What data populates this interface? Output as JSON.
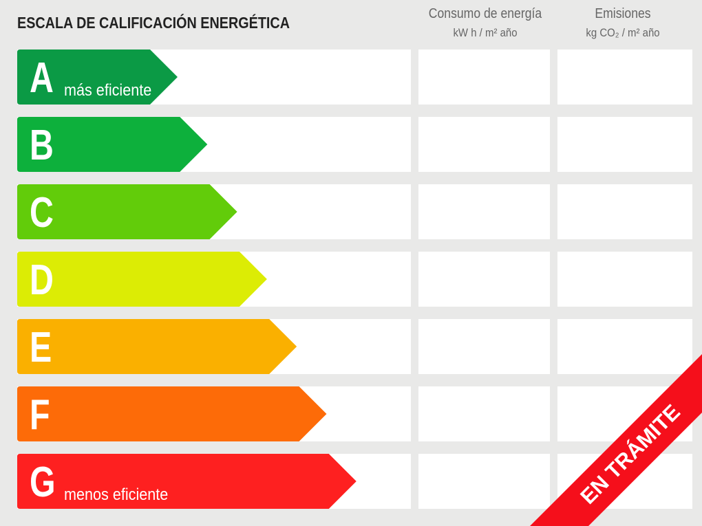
{
  "title": "ESCALA DE CALIFICACIÓN ENERGÉTICA",
  "columns": {
    "consumo": {
      "title": "Consumo de energía",
      "unit": "kW h / m² año"
    },
    "emisiones": {
      "title": "Emisiones",
      "unit": "kg CO₂ / m² año"
    }
  },
  "ratings": [
    {
      "letter": "A",
      "label": "más eficiente",
      "color": "#0b9a45"
    },
    {
      "letter": "B",
      "label": "",
      "color": "#0db03c"
    },
    {
      "letter": "C",
      "label": "",
      "color": "#62cc0a"
    },
    {
      "letter": "D",
      "label": "",
      "color": "#dcec05"
    },
    {
      "letter": "E",
      "label": "",
      "color": "#fab000"
    },
    {
      "letter": "F",
      "label": "",
      "color": "#fd6b08"
    },
    {
      "letter": "G",
      "label": "menos eficiente",
      "color": "#fe2020"
    }
  ],
  "banner": {
    "text": "EN TRÁMITE",
    "color": "#f50f1b"
  }
}
